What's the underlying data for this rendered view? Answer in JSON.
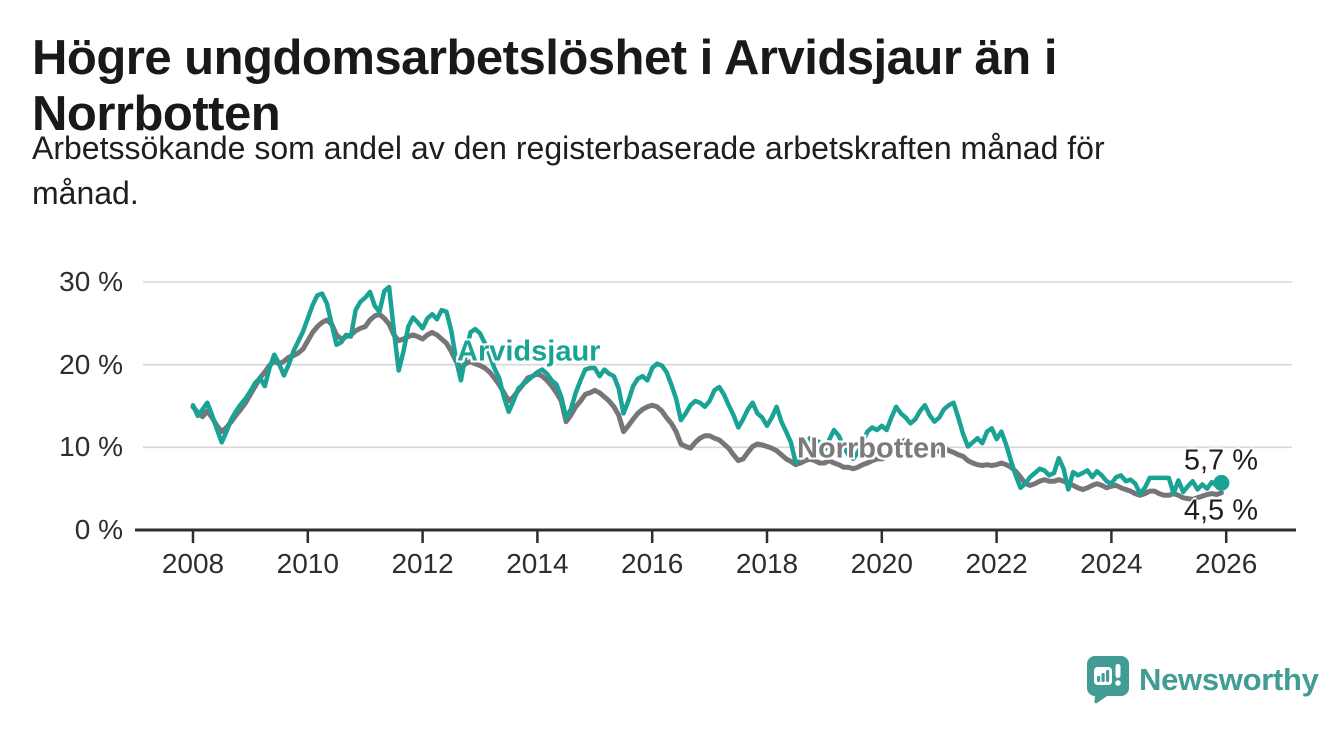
{
  "header": {
    "title": "Högre ungdomsarbetslöshet i Arvidsjaur än i Norrbotten",
    "subtitle": "Arbetssökande som andel av den registerbaserade arbetskraften månad för månad."
  },
  "footer": {
    "brand": "Newsworthy"
  },
  "colors": {
    "arvidsjaur_teal": "#1aa394",
    "norrbotten_gray": "#76767a",
    "norrbotten_label_gray": "#7b7b7e",
    "brand_teal": "#429b94",
    "axis_dark": "#2e2e2e",
    "gridline_gray": "#d7d7d7",
    "title_color": "#191919"
  },
  "chart_data": {
    "type": "line",
    "title": "Högre ungdomsarbetslöshet i Arvidsjaur än i Norrbotten",
    "subtitle": "Arbetssökande som andel av den registerbaserade arbetskraften månad för månad.",
    "x_unit": "month",
    "x_start": "2008-01",
    "x_end": "2025-12",
    "xlabel": "",
    "ylabel": "",
    "ylim": [
      0,
      31
    ],
    "grid": "horizontal",
    "legend_position": "inline-labels",
    "x_tick_years": [
      2008,
      2010,
      2012,
      2014,
      2016,
      2018,
      2020,
      2022,
      2024,
      2026
    ],
    "x_tick_labels": [
      "2008",
      "2010",
      "2012",
      "2014",
      "2016",
      "2018",
      "2020",
      "2022",
      "2024",
      "2026"
    ],
    "y_tick_values": [
      0,
      10,
      20,
      30
    ],
    "y_tick_labels": [
      "0 %",
      "10 %",
      "20 %",
      "30 %"
    ],
    "end_labels": {
      "arvidsjaur": "5,7 %",
      "norrbotten": "4,5 %"
    },
    "end_dot": {
      "series": "Arvidsjaur",
      "color": "#1aa394"
    },
    "series": [
      {
        "name": "Arvidsjaur",
        "color": "#1aa394",
        "values": [
          15.1,
          13.8,
          14.6,
          15.4,
          13.9,
          12.2,
          10.6,
          11.9,
          13.4,
          14.4,
          15.2,
          15.9,
          16.8,
          17.8,
          18.4,
          17.4,
          19.6,
          21.2,
          20.1,
          18.7,
          20.0,
          21.6,
          22.8,
          24.0,
          25.6,
          27.2,
          28.4,
          28.6,
          27.4,
          24.9,
          22.4,
          22.7,
          23.6,
          23.4,
          26.6,
          27.6,
          28.1,
          28.8,
          27.1,
          26.4,
          28.9,
          29.4,
          24.1,
          19.3,
          21.6,
          24.6,
          25.7,
          25.1,
          24.4,
          25.6,
          26.1,
          25.5,
          26.6,
          26.4,
          24.1,
          20.6,
          18.1,
          21.1,
          23.9,
          24.3,
          23.8,
          22.6,
          21.2,
          19.6,
          18.4,
          16.1,
          14.3,
          15.6,
          17.1,
          17.6,
          18.1,
          18.6,
          19.1,
          19.4,
          18.9,
          18.1,
          17.6,
          16.1,
          13.6,
          14.6,
          16.6,
          18.1,
          19.4,
          19.6,
          19.6,
          18.6,
          19.4,
          18.9,
          18.6,
          17.1,
          14.1,
          15.6,
          17.4,
          18.3,
          18.6,
          18.1,
          19.6,
          20.1,
          19.9,
          19.1,
          17.6,
          15.9,
          13.3,
          14.1,
          15.1,
          15.6,
          15.4,
          14.9,
          15.6,
          16.9,
          17.3,
          16.4,
          15.1,
          13.9,
          12.4,
          13.4,
          14.6,
          15.4,
          14.1,
          13.6,
          12.6,
          13.6,
          14.9,
          13.1,
          11.9,
          10.6,
          8.1,
          9.1,
          10.4,
          11.1,
          10.9,
          10.6,
          9.6,
          10.9,
          12.1,
          11.4,
          10.1,
          9.1,
          8.6,
          9.4,
          10.6,
          11.9,
          12.4,
          12.1,
          12.6,
          12.1,
          13.6,
          14.9,
          14.1,
          13.6,
          12.9,
          13.4,
          14.4,
          15.1,
          13.9,
          13.1,
          13.6,
          14.6,
          15.1,
          15.4,
          13.6,
          11.6,
          10.1,
          10.6,
          11.1,
          10.5,
          11.9,
          12.3,
          11.0,
          11.9,
          10.3,
          8.4,
          6.6,
          5.1,
          5.6,
          6.4,
          6.9,
          7.4,
          7.2,
          6.6,
          6.9,
          8.7,
          7.4,
          4.9,
          7.0,
          6.6,
          6.9,
          7.2,
          6.4,
          7.1,
          6.6,
          5.9,
          5.6,
          6.4,
          6.6,
          5.9,
          6.1,
          5.6,
          4.4,
          5.1,
          6.3,
          6.3,
          6.3,
          6.3,
          6.3,
          4.4,
          6.0,
          4.6,
          5.3,
          5.9,
          4.9,
          5.5,
          5.0,
          5.8,
          5.4,
          5.7
        ]
      },
      {
        "name": "Norrbotten",
        "color": "#76767a",
        "values": [
          14.9,
          14.2,
          13.7,
          14.4,
          13.6,
          12.6,
          11.9,
          12.4,
          13.1,
          13.9,
          14.6,
          15.4,
          16.4,
          17.4,
          18.4,
          19.1,
          19.9,
          20.4,
          20.1,
          20.4,
          20.9,
          21.1,
          21.4,
          21.9,
          22.9,
          23.9,
          24.6,
          25.1,
          25.4,
          24.9,
          23.6,
          23.1,
          23.4,
          23.6,
          24.1,
          24.4,
          24.6,
          25.4,
          25.9,
          26.1,
          25.6,
          24.9,
          23.6,
          22.9,
          23.1,
          23.4,
          23.6,
          23.4,
          23.1,
          23.6,
          23.9,
          23.6,
          23.1,
          22.6,
          21.6,
          20.4,
          19.6,
          20.1,
          20.4,
          20.1,
          19.9,
          19.6,
          19.1,
          18.4,
          17.6,
          16.6,
          15.6,
          16.1,
          16.9,
          17.6,
          18.4,
          18.6,
          18.9,
          18.6,
          18.1,
          17.4,
          16.6,
          15.6,
          13.1,
          13.9,
          14.9,
          15.6,
          16.4,
          16.6,
          16.9,
          16.6,
          16.1,
          15.6,
          14.9,
          13.9,
          11.9,
          12.6,
          13.4,
          14.1,
          14.6,
          14.9,
          15.1,
          14.9,
          14.4,
          13.6,
          12.9,
          11.9,
          10.4,
          10.1,
          9.9,
          10.6,
          11.1,
          11.4,
          11.4,
          11.1,
          10.9,
          10.4,
          9.9,
          9.1,
          8.4,
          8.6,
          9.4,
          10.1,
          10.4,
          10.3,
          10.1,
          9.9,
          9.6,
          9.1,
          8.6,
          8.3,
          7.9,
          8.1,
          8.4,
          8.6,
          8.4,
          8.1,
          8.1,
          8.4,
          8.1,
          7.9,
          7.6,
          7.6,
          7.4,
          7.6,
          7.9,
          8.1,
          8.4,
          8.6,
          8.6,
          8.9,
          9.6,
          10.4,
          10.6,
          10.9,
          10.6,
          10.4,
          10.1,
          9.9,
          9.6,
          9.4,
          9.6,
          9.9,
          9.6,
          9.4,
          9.1,
          8.9,
          8.4,
          8.1,
          7.9,
          7.8,
          7.9,
          7.8,
          7.9,
          8.1,
          7.9,
          7.6,
          7.1,
          6.4,
          5.6,
          5.4,
          5.6,
          5.9,
          6.1,
          5.9,
          5.9,
          6.1,
          5.9,
          5.6,
          5.4,
          5.1,
          4.9,
          5.1,
          5.4,
          5.6,
          5.4,
          5.1,
          5.3,
          5.4,
          5.1,
          4.9,
          4.7,
          4.4,
          4.2,
          4.4,
          4.7,
          4.7,
          4.4,
          4.2,
          4.2,
          4.4,
          4.2,
          3.9,
          3.8,
          3.7,
          3.9,
          4.1,
          4.3,
          4.4,
          4.3,
          4.5
        ]
      }
    ]
  }
}
